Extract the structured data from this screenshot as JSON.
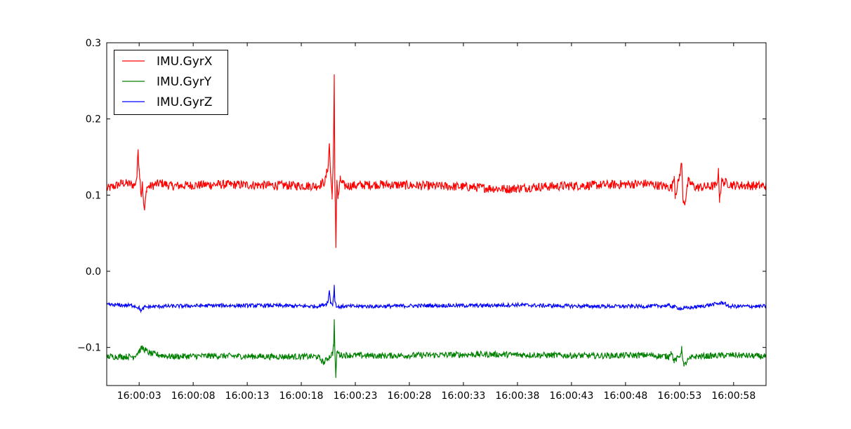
{
  "chart_data": {
    "type": "line",
    "title": "",
    "xlabel": "",
    "ylabel": "",
    "x_tick_labels": [
      "16:00:03",
      "16:00:08",
      "16:00:13",
      "16:00:18",
      "16:00:23",
      "16:00:28",
      "16:00:33",
      "16:00:38",
      "16:00:43",
      "16:00:48",
      "16:00:53",
      "16:00:58"
    ],
    "x_tick_seconds": [
      3,
      8,
      13,
      18,
      23,
      28,
      33,
      38,
      43,
      48,
      53,
      58
    ],
    "xlim_seconds": [
      0,
      61
    ],
    "ylim": [
      -0.15,
      0.3
    ],
    "y_ticks": [
      -0.1,
      0.0,
      0.1,
      0.2,
      0.3
    ],
    "y_tick_labels": [
      "−0.1",
      "0.0",
      "0.1",
      "0.2",
      "0.3"
    ],
    "grid": false,
    "legend_position": "top-left",
    "series": [
      {
        "name": "IMU.GyrX",
        "color": "#ff0000",
        "baseline": 0.113,
        "noise": 0.006,
        "points": [
          [
            0,
            0.108
          ],
          [
            1.5,
            0.116
          ],
          [
            2.6,
            0.113
          ],
          [
            2.8,
            0.125
          ],
          [
            2.9,
            0.16
          ],
          [
            3.0,
            0.135
          ],
          [
            3.2,
            0.1
          ],
          [
            3.3,
            0.118
          ],
          [
            3.4,
            0.09
          ],
          [
            3.5,
            0.08
          ],
          [
            3.7,
            0.11
          ],
          [
            5,
            0.116
          ],
          [
            6,
            0.112
          ],
          [
            10,
            0.114
          ],
          [
            15,
            0.113
          ],
          [
            19.5,
            0.112
          ],
          [
            20.2,
            0.118
          ],
          [
            20.5,
            0.14
          ],
          [
            20.6,
            0.168
          ],
          [
            20.7,
            0.13
          ],
          [
            20.85,
            0.1
          ],
          [
            20.95,
            0.14
          ],
          [
            21.0,
            0.18
          ],
          [
            21.05,
            0.254
          ],
          [
            21.1,
            0.12
          ],
          [
            21.15,
            0.09
          ],
          [
            21.2,
            0.035
          ],
          [
            21.3,
            0.12
          ],
          [
            21.4,
            0.095
          ],
          [
            21.6,
            0.12
          ],
          [
            22,
            0.112
          ],
          [
            25,
            0.114
          ],
          [
            30,
            0.112
          ],
          [
            33,
            0.111
          ],
          [
            37,
            0.108
          ],
          [
            40,
            0.111
          ],
          [
            45,
            0.113
          ],
          [
            50,
            0.115
          ],
          [
            52.3,
            0.11
          ],
          [
            52.5,
            0.125
          ],
          [
            52.6,
            0.1
          ],
          [
            52.9,
            0.118
          ],
          [
            53.2,
            0.142
          ],
          [
            53.3,
            0.096
          ],
          [
            53.5,
            0.09
          ],
          [
            53.8,
            0.118
          ],
          [
            54.5,
            0.11
          ],
          [
            56.4,
            0.112
          ],
          [
            56.6,
            0.13
          ],
          [
            56.7,
            0.095
          ],
          [
            56.9,
            0.118
          ],
          [
            58,
            0.113
          ],
          [
            61,
            0.112
          ]
        ]
      },
      {
        "name": "IMU.GyrY",
        "color": "#008000",
        "baseline": -0.111,
        "noise": 0.004,
        "points": [
          [
            0,
            -0.112
          ],
          [
            2.5,
            -0.112
          ],
          [
            3.0,
            -0.105
          ],
          [
            3.3,
            -0.1
          ],
          [
            3.6,
            -0.104
          ],
          [
            4,
            -0.108
          ],
          [
            6,
            -0.112
          ],
          [
            10,
            -0.111
          ],
          [
            15,
            -0.112
          ],
          [
            19.5,
            -0.112
          ],
          [
            19.8,
            -0.116
          ],
          [
            20.1,
            -0.12
          ],
          [
            20.4,
            -0.115
          ],
          [
            20.9,
            -0.108
          ],
          [
            21.0,
            -0.095
          ],
          [
            21.05,
            -0.066
          ],
          [
            21.1,
            -0.1
          ],
          [
            21.2,
            -0.14
          ],
          [
            21.3,
            -0.105
          ],
          [
            21.6,
            -0.11
          ],
          [
            22,
            -0.11
          ],
          [
            25,
            -0.111
          ],
          [
            30,
            -0.11
          ],
          [
            35,
            -0.109
          ],
          [
            40,
            -0.11
          ],
          [
            45,
            -0.111
          ],
          [
            50,
            -0.11
          ],
          [
            52,
            -0.112
          ],
          [
            52.2,
            -0.105
          ],
          [
            52.5,
            -0.118
          ],
          [
            53,
            -0.112
          ],
          [
            53.2,
            -0.102
          ],
          [
            53.4,
            -0.125
          ],
          [
            53.7,
            -0.118
          ],
          [
            54.3,
            -0.112
          ],
          [
            56,
            -0.111
          ],
          [
            58,
            -0.11
          ],
          [
            61,
            -0.112
          ]
        ]
      },
      {
        "name": "IMU.GyrZ",
        "color": "#0000ff",
        "baseline": -0.045,
        "noise": 0.0025,
        "points": [
          [
            0,
            -0.044
          ],
          [
            2.5,
            -0.045
          ],
          [
            3.0,
            -0.048
          ],
          [
            3.2,
            -0.052
          ],
          [
            3.5,
            -0.047
          ],
          [
            5,
            -0.046
          ],
          [
            10,
            -0.045
          ],
          [
            15,
            -0.045
          ],
          [
            19.5,
            -0.046
          ],
          [
            20.3,
            -0.043
          ],
          [
            20.5,
            -0.038
          ],
          [
            20.6,
            -0.025
          ],
          [
            20.7,
            -0.04
          ],
          [
            20.9,
            -0.044
          ],
          [
            21.0,
            -0.032
          ],
          [
            21.05,
            -0.019
          ],
          [
            21.1,
            -0.038
          ],
          [
            21.3,
            -0.047
          ],
          [
            22,
            -0.046
          ],
          [
            25,
            -0.046
          ],
          [
            30,
            -0.045
          ],
          [
            35,
            -0.045
          ],
          [
            38,
            -0.044
          ],
          [
            40,
            -0.045
          ],
          [
            45,
            -0.046
          ],
          [
            50,
            -0.046
          ],
          [
            52,
            -0.045
          ],
          [
            53.2,
            -0.049
          ],
          [
            55,
            -0.046
          ],
          [
            57.2,
            -0.041
          ],
          [
            57.4,
            -0.046
          ],
          [
            61,
            -0.046
          ]
        ]
      }
    ]
  }
}
